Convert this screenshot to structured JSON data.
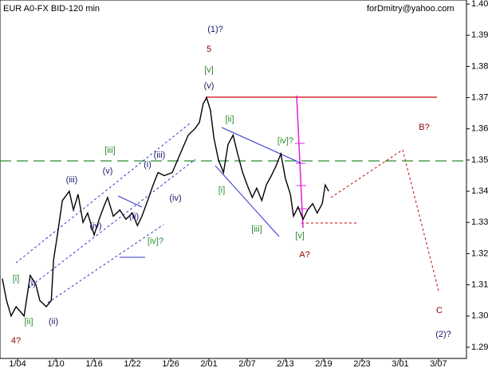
{
  "chart_data": {
    "type": "line",
    "title": "EUR A0-FX BID-120 min",
    "watermark": "forDmitry@yahoo.com",
    "color": "#000000",
    "x": [
      -0.4,
      -0.29,
      -0.17,
      -0.04,
      0.17,
      0.33,
      0.48,
      0.58,
      0.75,
      0.88,
      0.94,
      1.04,
      1.17,
      1.35,
      1.46,
      1.58,
      1.71,
      1.83,
      2.0,
      2.13,
      2.25,
      2.35,
      2.5,
      2.67,
      2.83,
      3.0,
      3.13,
      3.25,
      3.4,
      3.54,
      3.67,
      3.83,
      4.04,
      4.25,
      4.46,
      4.63,
      4.75,
      4.85,
      4.94,
      5.04,
      5.13,
      5.25,
      5.38,
      5.5,
      5.63,
      5.75,
      5.88,
      6.0,
      6.13,
      6.25,
      6.38,
      6.5,
      6.63,
      6.75,
      6.88,
      7.0,
      7.13,
      7.21,
      7.33,
      7.46,
      7.58,
      7.71,
      7.83,
      7.96,
      8.04,
      8.13
    ],
    "values": [
      1.312,
      1.305,
      1.3,
      1.303,
      1.3,
      1.313,
      1.31,
      1.305,
      1.303,
      1.305,
      1.318,
      1.326,
      1.337,
      1.34,
      1.334,
      1.339,
      1.33,
      1.333,
      1.326,
      1.331,
      1.335,
      1.338,
      1.332,
      1.334,
      1.331,
      1.333,
      1.329,
      1.332,
      1.337,
      1.342,
      1.346,
      1.345,
      1.346,
      1.352,
      1.358,
      1.36,
      1.362,
      1.368,
      1.37,
      1.366,
      1.357,
      1.35,
      1.346,
      1.355,
      1.358,
      1.352,
      1.346,
      1.342,
      1.338,
      1.341,
      1.337,
      1.342,
      1.345,
      1.348,
      1.352,
      1.344,
      1.339,
      1.332,
      1.335,
      1.331,
      1.334,
      1.336,
      1.333,
      1.336,
      1.342,
      1.34
    ],
    "xlim": [
      -0.46,
      11.73
    ],
    "xticks": [
      {
        "value": 0,
        "label": "1/04"
      },
      {
        "value": 1,
        "label": "1/10"
      },
      {
        "value": 2,
        "label": "1/16"
      },
      {
        "value": 3,
        "label": "1/22"
      },
      {
        "value": 4,
        "label": "1/26"
      },
      {
        "value": 5,
        "label": "2/01"
      },
      {
        "value": 6,
        "label": "2/07"
      },
      {
        "value": 7,
        "label": "2/13"
      },
      {
        "value": 8,
        "label": "2/19"
      },
      {
        "value": 9,
        "label": "2/23"
      },
      {
        "value": 10,
        "label": "3/01"
      },
      {
        "value": 11,
        "label": "3/07"
      }
    ],
    "ylim": [
      1.2864,
      1.4013
    ],
    "yticks": [
      1.29,
      {
        "value": 1.3,
        "label": "1.30"
      },
      1.31,
      1.32,
      1.33,
      1.34,
      1.35,
      1.36,
      1.37,
      1.38,
      1.39,
      {
        "value": 1.4,
        "label": "1.40"
      }
    ],
    "annotations": [
      {
        "text": "(1)?",
        "color": "#1a1a6e"
      },
      {
        "text": "5",
        "color": "#8b0000"
      },
      {
        "text": "[v]",
        "color": "#2e8b2e"
      },
      {
        "text": "(v)",
        "color": "#1a1a6e"
      },
      {
        "text": "[ii]",
        "color": "#2e8b2e"
      },
      {
        "text": "[iv]?",
        "color": "#2e8b2e"
      },
      {
        "text": "B?",
        "color": "#8b0000"
      },
      {
        "text": "[iii]",
        "color": "#2e8b2e"
      },
      {
        "text": "(v)",
        "color": "#1a1a6e"
      },
      {
        "text": "(iii)",
        "color": "#1a1a6e"
      },
      {
        "text": "(iii)",
        "color": "#1a1a6e"
      },
      {
        "text": "(i)",
        "color": "#1a1a6e"
      },
      {
        "text": "[i]",
        "color": "#2e8b2e"
      },
      {
        "text": "(iv)",
        "color": "#1a1a6e"
      },
      {
        "text": "(ii)",
        "color": "#1a1a6e"
      },
      {
        "text": "(iv)",
        "color": "#1a1a6e"
      },
      {
        "text": "[iv]?",
        "color": "#2e8b2e"
      },
      {
        "text": "[iii]",
        "color": "#2e8b2e"
      },
      {
        "text": "[v]",
        "color": "#2e8b2e"
      },
      {
        "text": "A?",
        "color": "#8b0000"
      },
      {
        "text": "(i)",
        "color": "#1a1a6e"
      },
      {
        "text": "[i]",
        "color": "#2e8b2e"
      },
      {
        "text": "[ii]",
        "color": "#2e8b2e"
      },
      {
        "text": "(ii)",
        "color": "#1a1a6e"
      },
      {
        "text": "4?",
        "color": "#8b0000"
      },
      {
        "text": "C",
        "color": "#8b0000"
      },
      {
        "text": "(2)?",
        "color": "#1a1a6e"
      }
    ]
  }
}
